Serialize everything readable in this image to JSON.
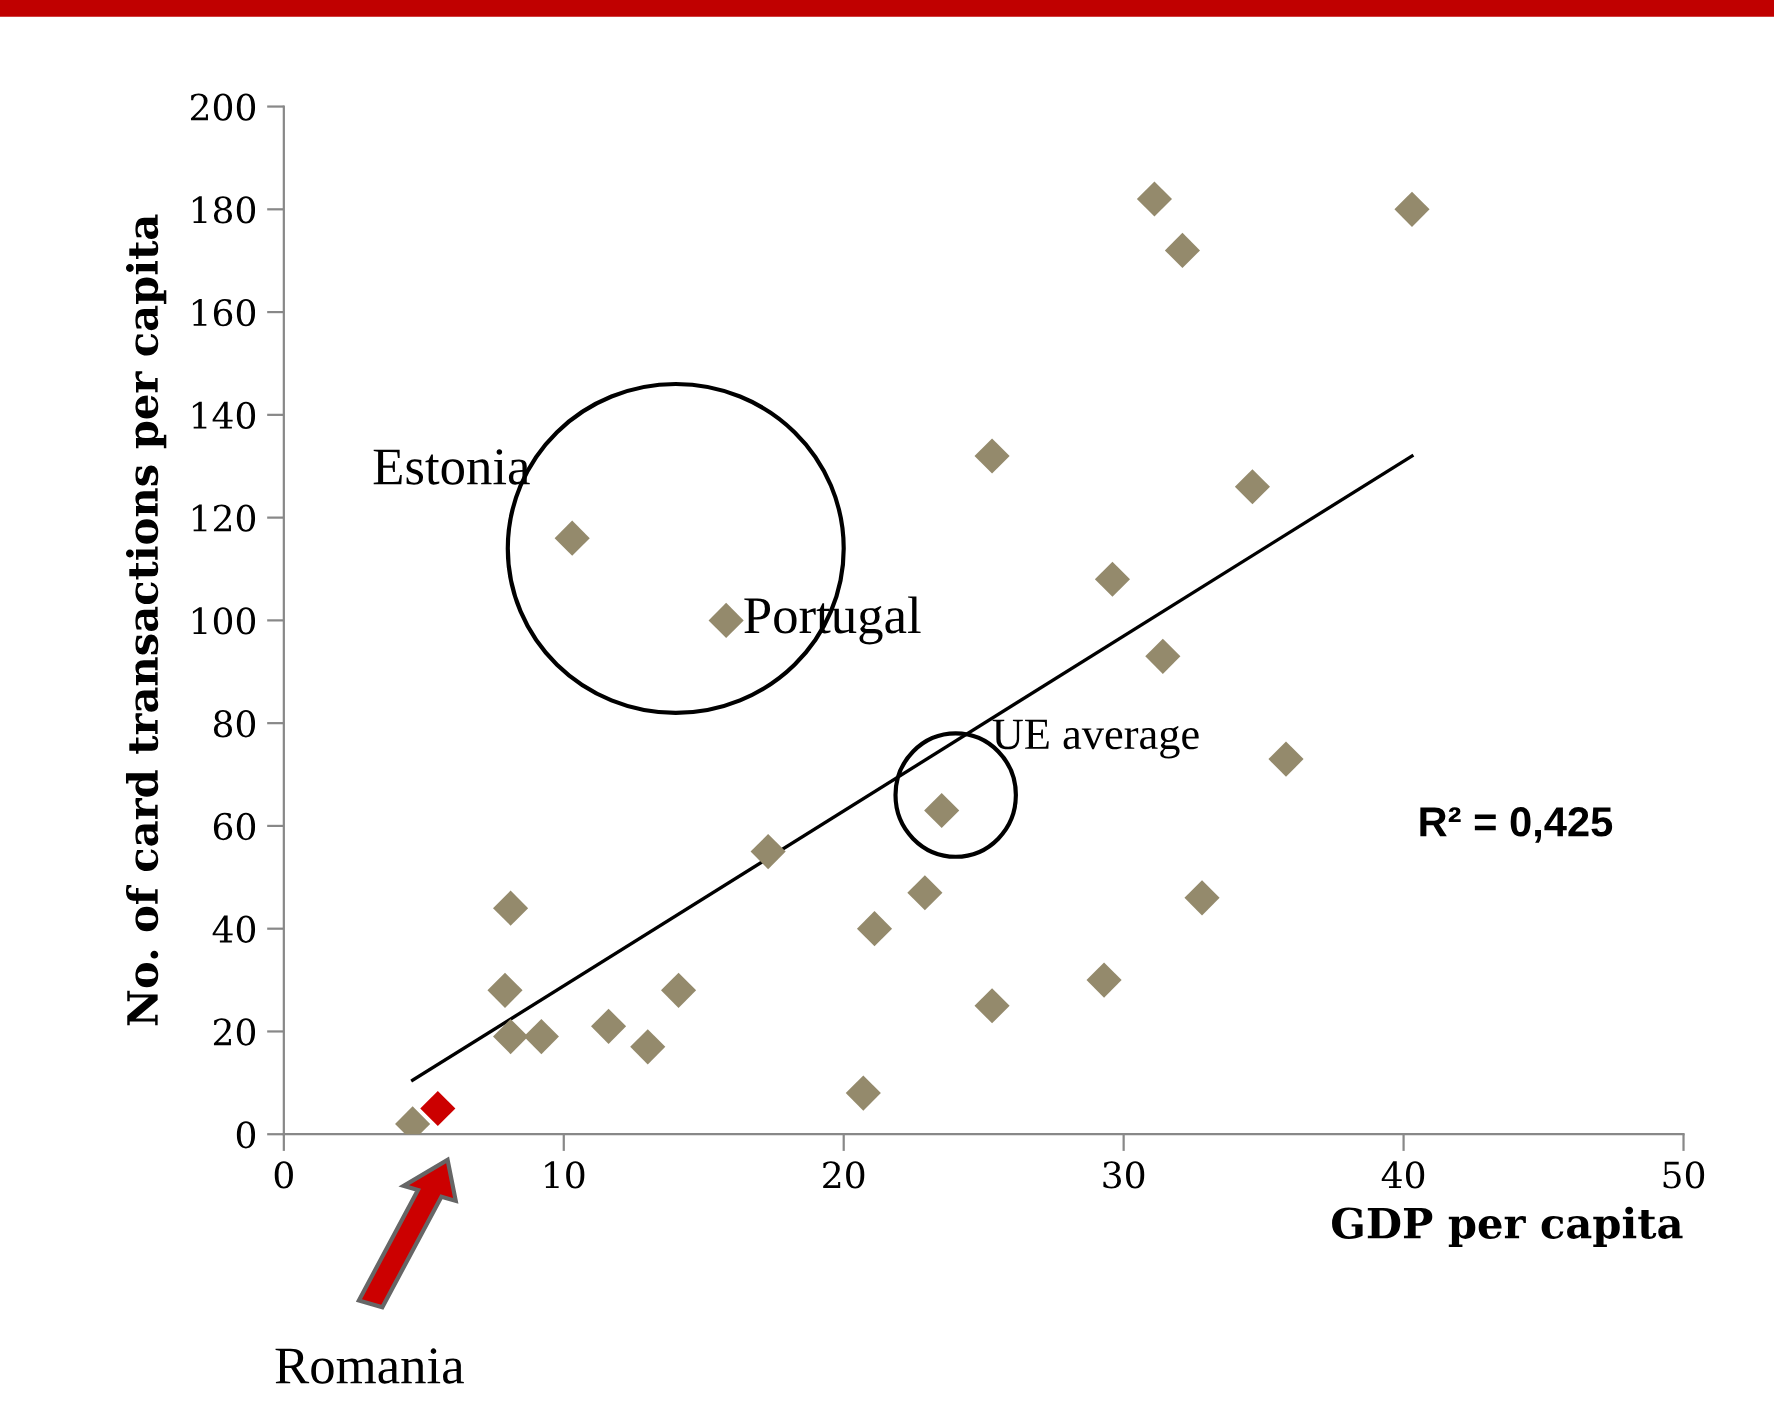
{
  "chart_data": {
    "type": "scatter",
    "xlabel": "GDP per capita",
    "ylabel": "No. of card transactions per capita",
    "xlim": [
      0,
      50
    ],
    "xticks": [
      0,
      10,
      20,
      30,
      40,
      50
    ],
    "ylim": [
      0,
      200
    ],
    "yticks": [
      0,
      20,
      40,
      60,
      80,
      100,
      120,
      140,
      160,
      180,
      200
    ],
    "grid": false,
    "series": [
      {
        "color": "#948a6c",
        "marker": "diamond",
        "x": [
          4.6,
          7.9,
          8.1,
          8.1,
          9.2,
          10.3,
          11.6,
          13.0,
          14.1,
          15.8,
          17.3,
          20.7,
          21.1,
          22.9,
          23.5,
          25.3,
          25.3,
          29.3,
          29.6,
          31.1,
          32.1,
          40.3,
          31.4,
          34.6,
          35.8,
          32.8
        ],
        "values": [
          2,
          28,
          44,
          19,
          19,
          116,
          21,
          17,
          28,
          100,
          55,
          8,
          40,
          47,
          63,
          132,
          25,
          30,
          108,
          182,
          172,
          180,
          93,
          126,
          73,
          46
        ]
      },
      {
        "color": "#cc0000",
        "marker": "diamond",
        "x": [
          5.5
        ],
        "values": [
          5
        ]
      },
      {
        "type": "line",
        "color": "#000000",
        "marker": "none",
        "x": [
          4.6,
          40.3
        ],
        "values": [
          10.5,
          132
        ]
      }
    ],
    "annotations": [
      {
        "text": "Estonia",
        "x": 10.3,
        "y": 116
      },
      {
        "text": "Portugal",
        "x": 15.8,
        "y": 100
      },
      {
        "text": "UE average",
        "x": 23.5,
        "y": 63
      },
      "Romania",
      "R² = 0,425"
    ]
  }
}
